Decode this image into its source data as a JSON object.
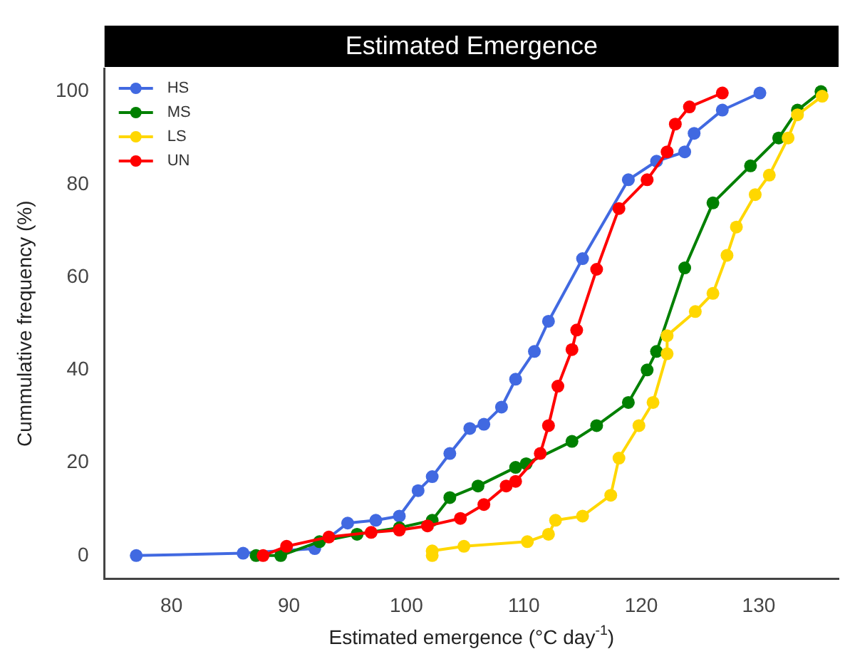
{
  "chart_data": {
    "type": "line",
    "title": "Estimated Emergence",
    "xlabel": "Estimated emergence (°C day$^{-1}$)",
    "ylabel": "Cummulative frequency (%)",
    "xlim": [
      74.3,
      136.8
    ],
    "xticks": [
      80,
      90,
      100,
      110,
      120,
      130
    ],
    "ylim": [
      -5,
      105
    ],
    "yticks": [
      0,
      20,
      40,
      60,
      80,
      100
    ],
    "grid": false,
    "legend": "top left",
    "marker": "circle",
    "line_style": "solid",
    "series": [
      {
        "name": "HS",
        "color": "#4169e1",
        "x": [
          77,
          86.1,
          92.2,
          95,
          97.4,
          99.4,
          101,
          102.2,
          103.7,
          105.4,
          106.6,
          108.1,
          109.3,
          110.9,
          112.1,
          115,
          118.9,
          121.3,
          123.7,
          124.5,
          126.9,
          130.1
        ],
        "values": [
          0,
          0.5,
          1.5,
          7,
          7.6,
          8.5,
          14,
          17,
          22,
          27.4,
          28.3,
          32,
          38,
          44,
          50.5,
          64,
          81,
          85,
          87,
          91,
          96,
          99.7
        ]
      },
      {
        "name": "MS",
        "color": "#008000",
        "x": [
          87.2,
          89.3,
          92.6,
          95.8,
          99.4,
          102.2,
          103.7,
          106.1,
          109.3,
          110.2,
          114.1,
          116.2,
          118.9,
          120.5,
          121.3,
          123.7,
          126.1,
          129.3,
          131.7,
          133.3,
          135.3
        ],
        "values": [
          0,
          0,
          3,
          4.6,
          6,
          7.6,
          12.5,
          15,
          19,
          19.8,
          24.6,
          28,
          33,
          40,
          44,
          62,
          76,
          84,
          90,
          96,
          100
        ]
      },
      {
        "name": "LS",
        "color": "#ffd700",
        "x": [
          102.2,
          102.2,
          104.9,
          110.3,
          112.1,
          112.7,
          115,
          117.4,
          118.1,
          119.8,
          121,
          122.2,
          122.2,
          124.6,
          126.1,
          127.3,
          128.1,
          129.7,
          130.9,
          132.5,
          133.3,
          135.4
        ],
        "values": [
          0,
          1,
          2,
          3,
          4.6,
          7.6,
          8.5,
          13,
          21,
          28,
          33,
          43.5,
          47.4,
          52.6,
          56.5,
          64.7,
          70.8,
          77.8,
          82,
          90,
          95,
          99
        ]
      },
      {
        "name": "UN",
        "color": "#ff0000",
        "x": [
          87.8,
          89.8,
          93.4,
          97,
          99.4,
          101.8,
          104.6,
          106.6,
          108.5,
          109.3,
          111.4,
          112.1,
          112.9,
          114.1,
          114.5,
          116.2,
          118.1,
          120.5,
          122.2,
          122.9,
          124.1,
          126.9
        ],
        "values": [
          0,
          2,
          4,
          5,
          5.5,
          6.4,
          8,
          11,
          15,
          16,
          22,
          28,
          36.5,
          44.4,
          48.6,
          61.7,
          74.8,
          81,
          87,
          93,
          96.7,
          99.7
        ]
      }
    ]
  }
}
